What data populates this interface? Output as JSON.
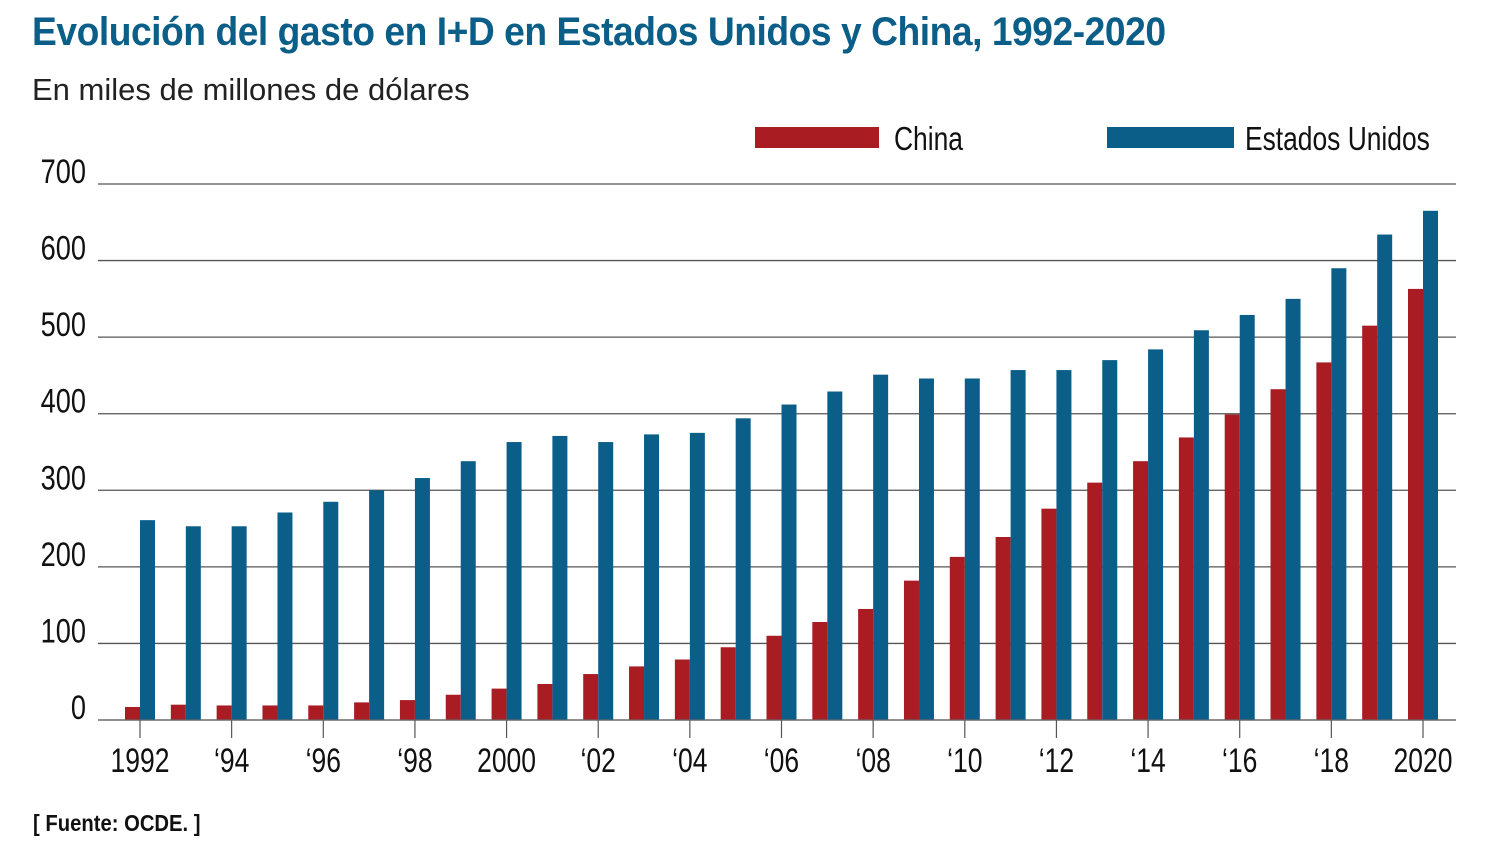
{
  "header": {
    "title": "Evolución del gasto en I+D en Estados Unidos y China, 1992-2020",
    "subtitle": "En miles de millones de dólares"
  },
  "footer": {
    "source": "[ Fuente: OCDE. ]"
  },
  "colors": {
    "china": "#a81c22",
    "usa": "#0b5e88",
    "title": "#0b5e88",
    "grid": "#555555"
  },
  "chart_data": {
    "type": "bar",
    "title": "Evolución del gasto en I+D en Estados Unidos y China, 1992-2020",
    "subtitle": "En miles de millones de dólares",
    "xlabel": "",
    "ylabel": "",
    "ylim": [
      0,
      700
    ],
    "yticks": [
      0,
      100,
      200,
      300,
      400,
      500,
      600,
      700
    ],
    "grid": true,
    "legend_position": "top-right",
    "categories": [
      1992,
      1993,
      1994,
      1995,
      1996,
      1997,
      1998,
      1999,
      2000,
      2001,
      2002,
      2003,
      2004,
      2005,
      2006,
      2007,
      2008,
      2009,
      2010,
      2011,
      2012,
      2013,
      2014,
      2015,
      2016,
      2017,
      2018,
      2019,
      2020
    ],
    "xtick_labels": [
      {
        "year": 1992,
        "label": "1992"
      },
      {
        "year": 1994,
        "label": "‘94"
      },
      {
        "year": 1996,
        "label": "‘96"
      },
      {
        "year": 1998,
        "label": "‘98"
      },
      {
        "year": 2000,
        "label": "2000"
      },
      {
        "year": 2002,
        "label": "‘02"
      },
      {
        "year": 2004,
        "label": "‘04"
      },
      {
        "year": 2006,
        "label": "‘06"
      },
      {
        "year": 2008,
        "label": "‘08"
      },
      {
        "year": 2010,
        "label": "‘10"
      },
      {
        "year": 2012,
        "label": "‘12"
      },
      {
        "year": 2014,
        "label": "‘14"
      },
      {
        "year": 2016,
        "label": "‘16"
      },
      {
        "year": 2018,
        "label": "‘18"
      },
      {
        "year": 2020,
        "label": "2020"
      }
    ],
    "series": [
      {
        "name": "China",
        "color": "#a81c22",
        "values": [
          17,
          20,
          19,
          19,
          19,
          23,
          26,
          33,
          41,
          47,
          60,
          70,
          79,
          95,
          110,
          128,
          145,
          182,
          213,
          239,
          276,
          310,
          338,
          369,
          399,
          432,
          467,
          515,
          563
        ]
      },
      {
        "name": "Estados Unidos",
        "color": "#0b5e88",
        "values": [
          261,
          253,
          253,
          271,
          285,
          300,
          316,
          338,
          363,
          371,
          363,
          373,
          375,
          394,
          412,
          429,
          451,
          446,
          446,
          457,
          457,
          470,
          484,
          509,
          529,
          550,
          590,
          634,
          665
        ]
      }
    ]
  }
}
